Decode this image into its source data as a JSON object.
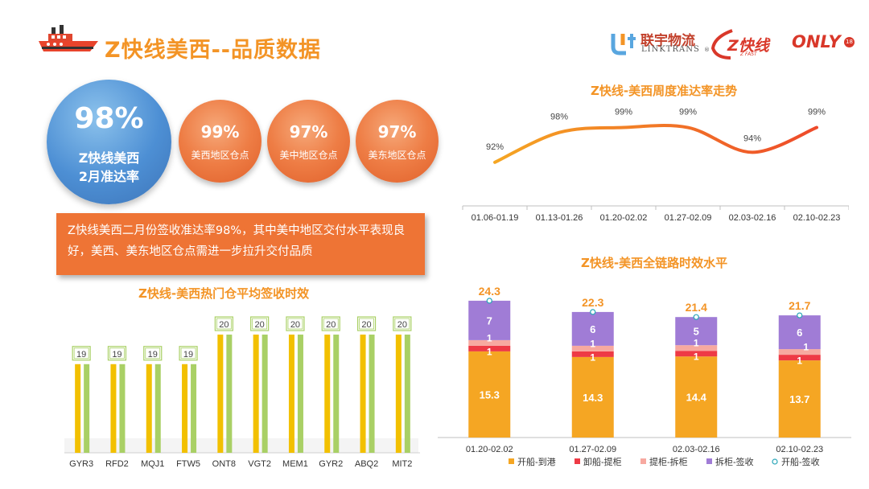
{
  "header": {
    "title": "Z快线美西--品质数据",
    "ship_icon": "ship-icon"
  },
  "logos": {
    "linktrans_cn": "联宇物流",
    "linktrans_en": "LINKTRANS",
    "linktrans_reg": "®",
    "zfast": "Z快线",
    "zfast_sub": "Z FAST",
    "only": "ONLY",
    "only_badge": "18"
  },
  "kpis": {
    "main": {
      "value": "98%",
      "line1": "Z快线美西",
      "line2": "2月准达率"
    },
    "regions": [
      {
        "value": "99%",
        "label": "美西地区仓点"
      },
      {
        "value": "97%",
        "label": "美中地区仓点"
      },
      {
        "value": "97%",
        "label": "美东地区仓点"
      }
    ]
  },
  "note": "Z快线美西二月份签收准达率98%，其中美中地区交付水平表现良好，美西、美东地区仓点需进一步拉升交付品质",
  "colors": {
    "accent": "#f39426",
    "blue": "#4d8fd4",
    "orange": "#ee7d45",
    "bar_yellow": "#f2c000",
    "bar_green": "#a9d065",
    "seg_kaichuan": "#f5a623",
    "seg_xiechuan": "#ee3a45",
    "seg_tigui": "#f7a9a0",
    "seg_chaigui": "#a07cd6",
    "marker": "#2aa6b8"
  },
  "chart_data": [
    {
      "type": "line",
      "title": "Z快线-美西周度准达率走势",
      "categories": [
        "01.06-01.19",
        "01.13-01.26",
        "01.20-02.02",
        "01.27-02.09",
        "02.03-02.16",
        "02.10-02.23"
      ],
      "values": [
        92,
        98,
        99,
        99,
        94,
        99
      ],
      "labels": [
        "92%",
        "98%",
        "99%",
        "99%",
        "94%",
        "99%"
      ],
      "ylim": [
        85,
        102
      ],
      "grid": false
    },
    {
      "type": "bar",
      "title": "Z快线-美西热门仓平均签收时效",
      "categories": [
        "GYR3",
        "RFD2",
        "MQJ1",
        "FTW5",
        "ONT8",
        "VGT2",
        "MEM1",
        "GYR2",
        "ABQ2",
        "MIT2"
      ],
      "series": [
        {
          "values": [
            19,
            19,
            19,
            19,
            20,
            20,
            20,
            20,
            20,
            20
          ]
        },
        {
          "values": [
            19,
            19,
            19,
            19,
            20,
            20,
            20,
            20,
            20,
            20
          ]
        }
      ],
      "ylim": [
        16,
        20.3
      ]
    },
    {
      "type": "bar",
      "stacked": true,
      "title": "Z快线-美西全链路时效水平",
      "categories": [
        "01.20-02.02",
        "01.27-02.09",
        "02.03-02.16",
        "02.10-02.23"
      ],
      "series": [
        {
          "name": "开船-到港",
          "values": [
            15.3,
            14.3,
            14.4,
            13.7
          ],
          "labels": [
            "15.3",
            "14.3",
            "14.4",
            "13.7"
          ]
        },
        {
          "name": "卸船-提柜",
          "values": [
            1,
            1,
            1,
            1
          ],
          "labels": [
            "1",
            "1",
            "1",
            "1"
          ]
        },
        {
          "name": "提柜-拆柜",
          "values": [
            1,
            1,
            1,
            1
          ],
          "labels": [
            "1",
            "1",
            "1",
            "1"
          ]
        },
        {
          "name": "拆柜-签收",
          "values": [
            7,
            6,
            5,
            6
          ],
          "labels": [
            "7",
            "6",
            "5",
            "6"
          ]
        }
      ],
      "totals": {
        "name": "开船-签收",
        "values": [
          24.3,
          22.3,
          21.4,
          21.7
        ],
        "labels": [
          "24.3",
          "22.3",
          "21.4",
          "21.7"
        ]
      },
      "ylim": [
        0,
        26
      ],
      "legend": "bottom"
    }
  ]
}
